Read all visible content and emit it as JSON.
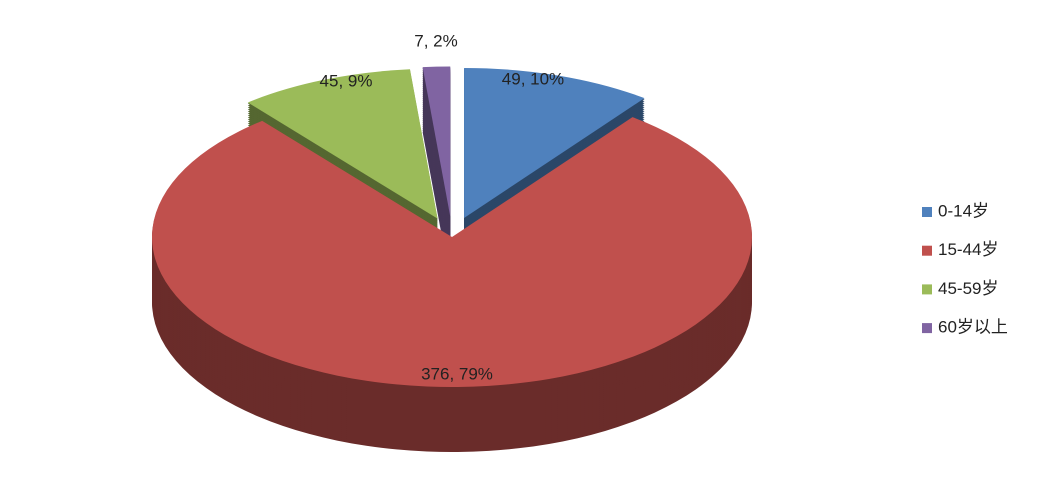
{
  "chart_data": {
    "type": "pie3d",
    "categories": [
      "0-14岁",
      "15-44岁",
      "45-59岁",
      "60岁以上"
    ],
    "values": [
      49,
      376,
      45,
      7
    ],
    "value_labels": [
      "49, 10%",
      "376, 79%",
      "45, 9%",
      "7, 2%"
    ],
    "colors": [
      "#4f81bd",
      "#c0504d",
      "#9bbb59",
      "#8064a2"
    ],
    "legend": "right"
  }
}
